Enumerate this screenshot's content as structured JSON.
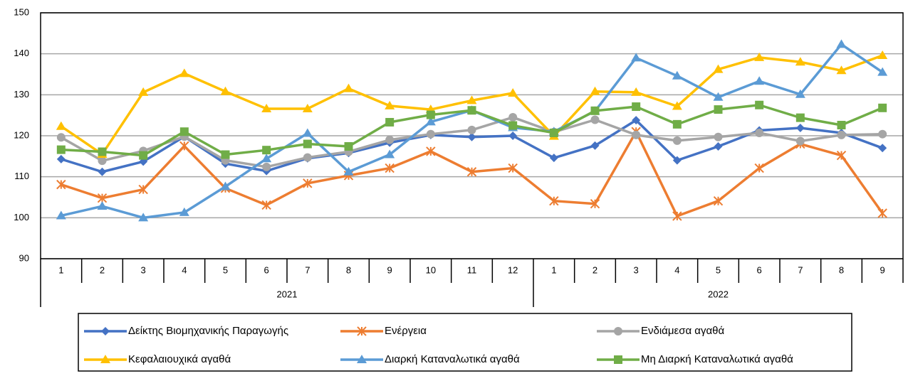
{
  "chart_data": {
    "type": "line",
    "groups": [
      {
        "label": "2021",
        "categories": [
          "1",
          "2",
          "3",
          "4",
          "5",
          "6",
          "7",
          "8",
          "9",
          "10",
          "11",
          "12"
        ]
      },
      {
        "label": "2022",
        "categories": [
          "1",
          "2",
          "3",
          "4",
          "5",
          "6",
          "7",
          "8",
          "9"
        ]
      }
    ],
    "ylim": [
      90,
      150
    ],
    "yticks": [
      90,
      100,
      110,
      120,
      130,
      140,
      150
    ],
    "grid": true,
    "legend": "bottom",
    "series": [
      {
        "name": "Δείκτης Βιομηχανικής Παραγωγής",
        "color": "#4472c4",
        "marker": "diamond",
        "values": [
          114.3,
          111.2,
          113.7,
          119.8,
          113.2,
          111.4,
          114.5,
          115.8,
          118.3,
          120.2,
          119.7,
          120.0,
          114.6,
          117.6,
          123.8,
          114.0,
          117.4,
          121.3,
          121.9,
          120.7,
          117.0
        ]
      },
      {
        "name": "Ενέργεια",
        "color": "#ed7d31",
        "marker": "star",
        "values": [
          108.1,
          104.8,
          106.9,
          117.5,
          107.2,
          103.1,
          108.4,
          110.3,
          112.1,
          116.2,
          111.2,
          112.1,
          104.1,
          103.4,
          121.0,
          100.4,
          104.1,
          112.1,
          118.0,
          115.2,
          101.1
        ]
      },
      {
        "name": "Ενδιάμεσα αγαθά",
        "color": "#a5a5a5",
        "marker": "circle",
        "values": [
          119.6,
          113.9,
          116.3,
          119.8,
          114.0,
          112.4,
          114.7,
          116.1,
          119.0,
          120.4,
          121.4,
          124.5,
          120.9,
          123.9,
          120.2,
          118.8,
          119.7,
          120.7,
          118.7,
          120.2,
          120.4
        ]
      },
      {
        "name": "Κεφαλαιουχικά αγαθά",
        "color": "#ffc000",
        "marker": "triangle",
        "values": [
          122.3,
          115.5,
          130.6,
          135.2,
          130.8,
          126.6,
          126.6,
          131.5,
          127.3,
          126.4,
          128.6,
          130.4,
          119.9,
          130.8,
          130.6,
          127.2,
          136.2,
          139.1,
          138.0,
          135.9,
          139.6
        ]
      },
      {
        "name": "Διαρκή Καταναλωτικά αγαθά",
        "color": "#5b9bd5",
        "marker": "triangle",
        "values": [
          100.5,
          102.8,
          100.0,
          101.3,
          107.6,
          114.4,
          120.6,
          111.2,
          115.4,
          123.4,
          126.2,
          122.0,
          121.0,
          126.0,
          139.0,
          134.6,
          129.4,
          133.3,
          130.1,
          142.3,
          135.5
        ]
      },
      {
        "name": "Μη Διαρκή Καταναλωτικά αγαθά",
        "color": "#70ad47",
        "marker": "square",
        "values": [
          116.6,
          116.1,
          115.2,
          121.0,
          115.4,
          116.5,
          118.0,
          117.4,
          123.3,
          125.1,
          126.2,
          122.5,
          120.7,
          126.1,
          127.1,
          122.8,
          126.4,
          127.5,
          124.4,
          122.6,
          126.8
        ]
      }
    ]
  }
}
